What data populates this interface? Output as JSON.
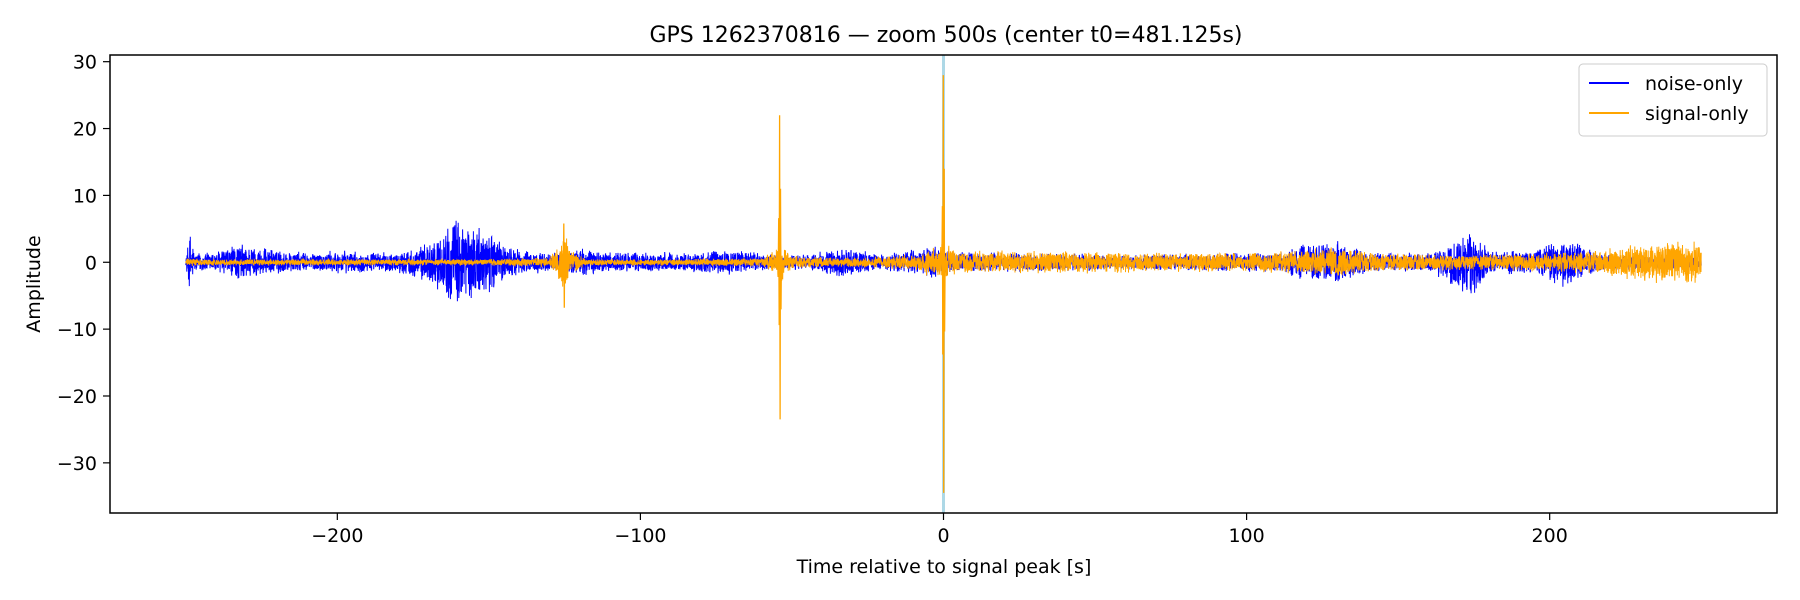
{
  "chart_data": {
    "type": "line",
    "title": "GPS 1262370816 — zoom 500s (center t0=481.125s)",
    "xlabel": "Time relative to signal peak [s]",
    "ylabel": "Amplitude",
    "xlim": [
      -275,
      275
    ],
    "ylim": [
      -37.5,
      31
    ],
    "xticks": [
      -200,
      -100,
      0,
      100,
      200
    ],
    "xtick_labels": [
      "−200",
      "−100",
      "0",
      "100",
      "200"
    ],
    "yticks": [
      -30,
      -20,
      -10,
      0,
      10,
      20,
      30
    ],
    "ytick_labels": [
      "−30",
      "−20",
      "−10",
      "0",
      "10",
      "20",
      "30"
    ],
    "grid": false,
    "legend_position": "top-right",
    "vertical_marker": {
      "x": 0,
      "color": "#add8e6"
    },
    "series": [
      {
        "name": "noise-only",
        "color": "#0000ff",
        "envelope": [
          [
            -250,
            0.8
          ],
          [
            -248.5,
            5
          ],
          [
            -247,
            1.5
          ],
          [
            -240,
            1.8
          ],
          [
            -232,
            3
          ],
          [
            -225,
            2.2
          ],
          [
            -210,
            1.5
          ],
          [
            -200,
            1.8
          ],
          [
            -190,
            1.6
          ],
          [
            -180,
            1.6
          ],
          [
            -170,
            3
          ],
          [
            -165,
            5
          ],
          [
            -160,
            7.5
          ],
          [
            -156,
            6
          ],
          [
            -150,
            5
          ],
          [
            -145,
            3
          ],
          [
            -140,
            2
          ],
          [
            -130,
            1.5
          ],
          [
            -125,
            1.5
          ],
          [
            -120,
            2.5
          ],
          [
            -115,
            1.8
          ],
          [
            -100,
            1.6
          ],
          [
            -85,
            1.5
          ],
          [
            -70,
            2
          ],
          [
            -55,
            1.2
          ],
          [
            -45,
            1.2
          ],
          [
            -33,
            2.5
          ],
          [
            -20,
            1.2
          ],
          [
            -10,
            2
          ],
          [
            -3,
            2.5
          ],
          [
            0,
            2
          ],
          [
            10,
            1.5
          ],
          [
            30,
            1.5
          ],
          [
            60,
            1.2
          ],
          [
            90,
            1.5
          ],
          [
            110,
            1.5
          ],
          [
            120,
            3
          ],
          [
            130,
            3.5
          ],
          [
            140,
            1.5
          ],
          [
            160,
            1.5
          ],
          [
            175,
            5.5
          ],
          [
            180,
            1.8
          ],
          [
            195,
            2
          ],
          [
            205,
            4
          ],
          [
            215,
            1.5
          ],
          [
            230,
            1.2
          ],
          [
            240,
            1
          ],
          [
            250,
            0.8
          ]
        ]
      },
      {
        "name": "signal-only",
        "color": "#ffa500",
        "envelope": [
          [
            -250,
            0.6
          ],
          [
            -240,
            0.5
          ],
          [
            -200,
            0.5
          ],
          [
            -150,
            0.5
          ],
          [
            -130,
            0.8
          ],
          [
            -127,
            3
          ],
          [
            -125,
            5
          ],
          [
            -123,
            2
          ],
          [
            -118,
            0.5
          ],
          [
            -90,
            0.5
          ],
          [
            -60,
            0.7
          ],
          [
            -56,
            2
          ],
          [
            -54,
            4
          ],
          [
            -50,
            1
          ],
          [
            -35,
            0.7
          ],
          [
            -20,
            1
          ],
          [
            -10,
            1.2
          ],
          [
            -3,
            2.5
          ],
          [
            0,
            3
          ],
          [
            5,
            1.8
          ],
          [
            20,
            1.8
          ],
          [
            40,
            1.8
          ],
          [
            60,
            1.6
          ],
          [
            80,
            1.5
          ],
          [
            100,
            1.5
          ],
          [
            120,
            2
          ],
          [
            130,
            2.5
          ],
          [
            140,
            1.5
          ],
          [
            160,
            1.3
          ],
          [
            180,
            1.3
          ],
          [
            200,
            1.5
          ],
          [
            210,
            1.8
          ],
          [
            220,
            2.2
          ],
          [
            230,
            3
          ],
          [
            240,
            3.5
          ],
          [
            250,
            3.5
          ]
        ],
        "spikes": [
          {
            "x": -54.0,
            "max": 22,
            "min": -23.5
          },
          {
            "x": -125.2,
            "max": 5.8,
            "min": -6.8
          },
          {
            "x": 0.0,
            "max": 28,
            "min": -34.5
          }
        ]
      }
    ]
  }
}
